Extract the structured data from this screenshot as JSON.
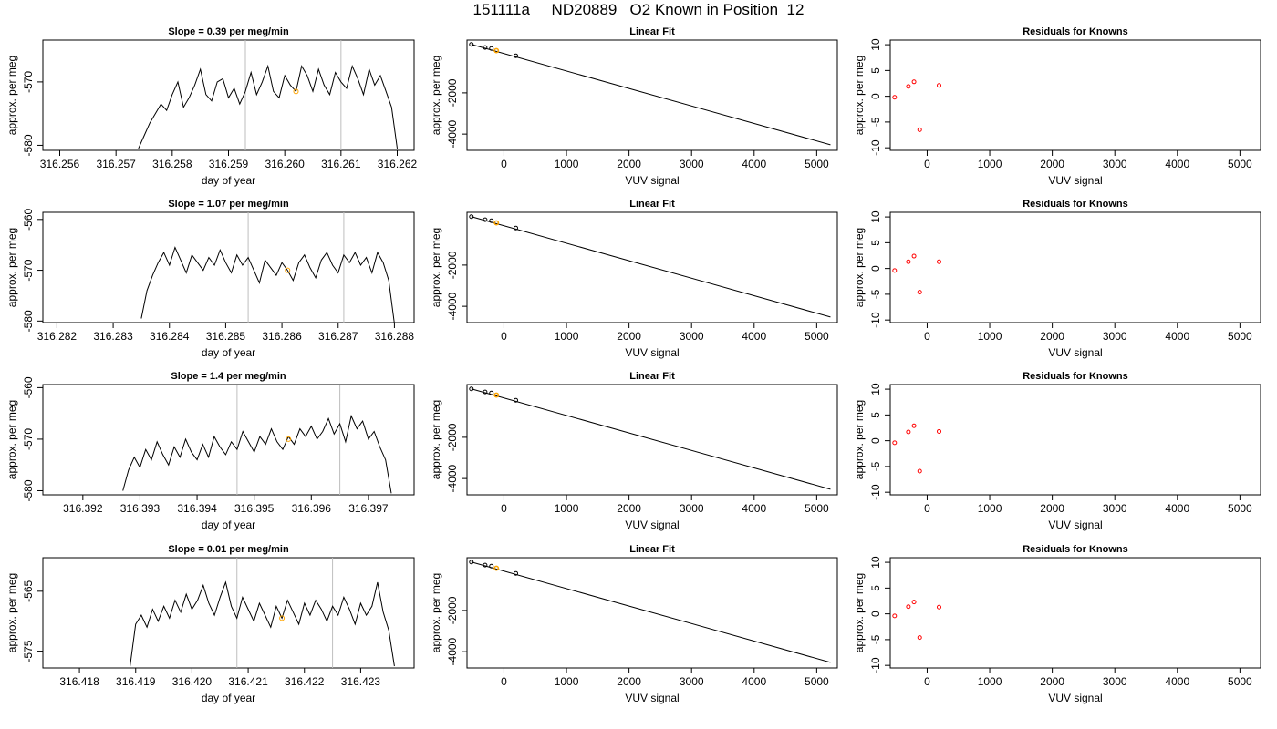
{
  "page": {
    "title": "151111a     ND20889   O2 Known in Position  12"
  },
  "colors": {
    "line": "#000000",
    "highlight": "#ffa500",
    "residual_points": "#ff0000",
    "guide_lines": "#bebebe"
  },
  "rows": [
    {
      "time": {
        "title": "Slope =  0.39  per meg/min",
        "xlabel": "day of year",
        "ylabel": "approx. per meg",
        "xlim": [
          316.2557,
          316.2623
        ],
        "ylim": [
          -580.8,
          -563.4
        ],
        "xticks": [
          "316.256",
          "316.257",
          "316.258",
          "316.259",
          "316.260",
          "316.261",
          "316.262"
        ],
        "yticks": [
          "-570",
          "-580"
        ]
      },
      "fit": {
        "title": "Linear Fit",
        "xlabel": "VUV signal",
        "ylabel": "approx. per meg",
        "xticks": [
          "0",
          "1000",
          "2000",
          "3000",
          "4000",
          "5000"
        ],
        "yticks": [
          "-2000",
          "-4000"
        ]
      },
      "resid": {
        "title": "Residuals for Knowns",
        "xlabel": "VUV signal",
        "ylabel": "approx. per meg",
        "xticks": [
          "0",
          "1000",
          "2000",
          "3000",
          "4000",
          "5000"
        ],
        "yticks": [
          "10",
          "5",
          "0",
          "-5",
          "-10"
        ]
      }
    },
    {
      "time": {
        "title": "Slope =  1.07  per meg/min",
        "xlabel": "day of year",
        "ylabel": "approx. per meg",
        "xlim": [
          316.28175,
          316.28835
        ],
        "ylim": [
          -580.3,
          -558.6
        ],
        "xticks": [
          "316.282",
          "316.283",
          "316.284",
          "316.285",
          "316.286",
          "316.287",
          "316.288"
        ],
        "yticks": [
          "-560",
          "-570",
          "-580"
        ]
      },
      "fit": {
        "title": "Linear Fit",
        "xlabel": "VUV signal",
        "ylabel": "approx. per meg",
        "xticks": [
          "0",
          "1000",
          "2000",
          "3000",
          "4000",
          "5000"
        ],
        "yticks": [
          "-2000",
          "-4000"
        ]
      },
      "resid": {
        "title": "Residuals for Knowns",
        "xlabel": "VUV signal",
        "ylabel": "approx. per meg",
        "xticks": [
          "0",
          "1000",
          "2000",
          "3000",
          "4000",
          "5000"
        ],
        "yticks": [
          "10",
          "5",
          "0",
          "-5",
          "-10"
        ]
      }
    },
    {
      "time": {
        "title": "Slope =  1.4  per meg/min",
        "xlabel": "day of year",
        "ylabel": "approx. per meg",
        "xlim": [
          316.3913,
          316.3978
        ],
        "ylim": [
          -580.8,
          -559.4
        ],
        "xticks": [
          "316.392",
          "316.393",
          "316.394",
          "316.395",
          "316.396",
          "316.397"
        ],
        "yticks": [
          "-560",
          "-570",
          "-580"
        ]
      },
      "fit": {
        "title": "Linear Fit",
        "xlabel": "VUV signal",
        "ylabel": "approx. per meg",
        "xticks": [
          "0",
          "1000",
          "2000",
          "3000",
          "4000",
          "5000"
        ],
        "yticks": [
          "-2000",
          "-4000"
        ]
      },
      "resid": {
        "title": "Residuals for Knowns",
        "xlabel": "VUV signal",
        "ylabel": "approx. per meg",
        "xticks": [
          "0",
          "1000",
          "2000",
          "3000",
          "4000",
          "5000"
        ],
        "yticks": [
          "10",
          "5",
          "0",
          "-5",
          "-10"
        ]
      }
    },
    {
      "time": {
        "title": "Slope =  0.01  per meg/min",
        "xlabel": "day of year",
        "ylabel": "approx. per meg",
        "xlim": [
          316.41735,
          316.42395
        ],
        "ylim": [
          -577.8,
          -559.4
        ],
        "xticks": [
          "316.418",
          "316.419",
          "316.420",
          "316.421",
          "316.422",
          "316.423"
        ],
        "yticks": [
          "-565",
          "-575"
        ]
      },
      "fit": {
        "title": "Linear Fit",
        "xlabel": "VUV signal",
        "ylabel": "approx. per meg",
        "xticks": [
          "0",
          "1000",
          "2000",
          "3000",
          "4000",
          "5000"
        ],
        "yticks": [
          "-2000",
          "-4000"
        ]
      },
      "resid": {
        "title": "Residuals for Knowns",
        "xlabel": "VUV signal",
        "ylabel": "approx. per meg",
        "xticks": [
          "0",
          "1000",
          "2000",
          "3000",
          "4000",
          "5000"
        ],
        "yticks": [
          "10",
          "5",
          "0",
          "-5",
          "-10"
        ]
      }
    }
  ],
  "chart_data": [
    {
      "type": "line",
      "panel": "time-series-row-1",
      "title": "Slope =  0.39  per meg/min",
      "xlabel": "day of year",
      "ylabel": "approx. per meg",
      "xlim": [
        316.2557,
        316.2623
      ],
      "ylim": [
        -580.8,
        -563.4
      ],
      "vlines": [
        316.2593,
        316.261
      ],
      "highlight_point": {
        "x": 316.2602,
        "y": -571.5
      },
      "series": [
        {
          "x": [
            316.2574,
            316.2575,
            316.2576,
            316.2577,
            316.2578,
            316.2579,
            316.258,
            316.2581,
            316.2582,
            316.2583,
            316.2584,
            316.2585,
            316.2586,
            316.2587,
            316.2588,
            316.2589,
            316.259,
            316.2591,
            316.2592,
            316.2593,
            316.2594,
            316.2595,
            316.2596,
            316.2597,
            316.2598,
            316.2599,
            316.26,
            316.2601,
            316.2602,
            316.2603,
            316.2604,
            316.2605,
            316.2606,
            316.2607,
            316.2608,
            316.2609,
            316.261,
            316.2611,
            316.2612,
            316.2613,
            316.2614,
            316.2615,
            316.2616,
            316.2617,
            316.2618,
            316.2619,
            316.262
          ],
          "values": [
            -580.5,
            -578.5,
            -576.5,
            -575.0,
            -573.5,
            -574.5,
            -572.0,
            -570.0,
            -574.0,
            -572.5,
            -570.5,
            -568.0,
            -572.0,
            -573.0,
            -570.0,
            -569.5,
            -572.5,
            -571.0,
            -573.5,
            -571.5,
            -568.5,
            -572.0,
            -570.0,
            -567.5,
            -571.5,
            -572.5,
            -569.0,
            -570.5,
            -571.5,
            -567.5,
            -569.0,
            -571.5,
            -568.0,
            -570.5,
            -572.0,
            -568.5,
            -570.0,
            -571.0,
            -567.5,
            -569.5,
            -572.0,
            -568.0,
            -570.5,
            -569.0,
            -571.5,
            -574.0,
            -580.5
          ]
        }
      ]
    },
    {
      "type": "line",
      "panel": "time-series-row-2",
      "title": "Slope =  1.07  per meg/min",
      "xlabel": "day of year",
      "ylabel": "approx. per meg",
      "xlim": [
        316.28175,
        316.28835
      ],
      "ylim": [
        -580.3,
        -558.6
      ],
      "vlines": [
        316.2854,
        316.2871
      ],
      "highlight_point": {
        "x": 316.2861,
        "y": -570.0
      },
      "series": [
        {
          "x": [
            316.2835,
            316.2836,
            316.2837,
            316.2838,
            316.2839,
            316.284,
            316.2841,
            316.2842,
            316.2843,
            316.2844,
            316.2845,
            316.2846,
            316.2847,
            316.2848,
            316.2849,
            316.285,
            316.2851,
            316.2852,
            316.2853,
            316.2854,
            316.2855,
            316.2856,
            316.2857,
            316.2858,
            316.2859,
            316.286,
            316.2861,
            316.2862,
            316.2863,
            316.2864,
            316.2865,
            316.2866,
            316.2867,
            316.2868,
            316.2869,
            316.287,
            316.2871,
            316.2872,
            316.2873,
            316.2874,
            316.2875,
            316.2876,
            316.2877,
            316.2878,
            316.2879,
            316.288
          ],
          "values": [
            -579.5,
            -574.0,
            -571.0,
            -568.5,
            -566.5,
            -569.0,
            -565.5,
            -568.0,
            -570.5,
            -567.0,
            -568.5,
            -570.0,
            -567.5,
            -569.0,
            -566.0,
            -568.5,
            -570.5,
            -567.0,
            -569.0,
            -567.5,
            -570.0,
            -572.5,
            -568.0,
            -569.5,
            -571.0,
            -568.5,
            -570.0,
            -572.0,
            -568.5,
            -567.0,
            -569.5,
            -571.5,
            -568.0,
            -566.5,
            -569.0,
            -570.5,
            -567.0,
            -568.5,
            -566.5,
            -569.0,
            -567.5,
            -570.5,
            -566.5,
            -568.5,
            -572.0,
            -580.5
          ]
        }
      ]
    },
    {
      "type": "line",
      "panel": "time-series-row-3",
      "title": "Slope =  1.4  per meg/min",
      "xlabel": "day of year",
      "ylabel": "approx. per meg",
      "xlim": [
        316.3913,
        316.3978
      ],
      "ylim": [
        -580.8,
        -559.4
      ],
      "vlines": [
        316.3947,
        316.3965
      ],
      "highlight_point": {
        "x": 316.3956,
        "y": -570.0
      },
      "series": [
        {
          "x": [
            316.3927,
            316.3928,
            316.3929,
            316.393,
            316.3931,
            316.3932,
            316.3933,
            316.3934,
            316.3935,
            316.3936,
            316.3937,
            316.3938,
            316.3939,
            316.394,
            316.3941,
            316.3942,
            316.3943,
            316.3944,
            316.3945,
            316.3946,
            316.3947,
            316.3948,
            316.3949,
            316.395,
            316.3951,
            316.3952,
            316.3953,
            316.3954,
            316.3955,
            316.3956,
            316.3957,
            316.3958,
            316.3959,
            316.396,
            316.3961,
            316.3962,
            316.3963,
            316.3964,
            316.3965,
            316.3966,
            316.3967,
            316.3968,
            316.3969,
            316.397,
            316.3971,
            316.3972,
            316.3973,
            316.3974
          ],
          "values": [
            -580.0,
            -576.0,
            -573.5,
            -575.5,
            -572.0,
            -574.0,
            -570.5,
            -573.0,
            -575.0,
            -571.5,
            -573.5,
            -570.0,
            -572.5,
            -574.0,
            -571.0,
            -573.5,
            -569.5,
            -571.5,
            -573.0,
            -570.5,
            -572.0,
            -568.5,
            -570.5,
            -572.5,
            -569.5,
            -571.0,
            -568.0,
            -570.5,
            -572.0,
            -569.5,
            -571.0,
            -568.0,
            -569.5,
            -567.5,
            -570.0,
            -568.5,
            -566.0,
            -569.0,
            -567.0,
            -570.5,
            -565.5,
            -568.0,
            -566.5,
            -570.0,
            -568.5,
            -571.5,
            -574.0,
            -580.5
          ]
        }
      ]
    },
    {
      "type": "line",
      "panel": "time-series-row-4",
      "title": "Slope =  0.01  per meg/min",
      "xlabel": "day of year",
      "ylabel": "approx. per meg",
      "xlim": [
        316.41735,
        316.42395
      ],
      "ylim": [
        -577.8,
        -559.4
      ],
      "vlines": [
        316.4208,
        316.4225
      ],
      "highlight_point": {
        "x": 316.4216,
        "y": -569.5
      },
      "series": [
        {
          "x": [
            316.4189,
            316.419,
            316.4191,
            316.4192,
            316.4193,
            316.4194,
            316.4195,
            316.4196,
            316.4197,
            316.4198,
            316.4199,
            316.42,
            316.4201,
            316.4202,
            316.4203,
            316.4204,
            316.4205,
            316.4206,
            316.4207,
            316.4208,
            316.4209,
            316.421,
            316.4211,
            316.4212,
            316.4213,
            316.4214,
            316.4215,
            316.4216,
            316.4217,
            316.4218,
            316.4219,
            316.422,
            316.4221,
            316.4222,
            316.4223,
            316.4224,
            316.4225,
            316.4226,
            316.4227,
            316.4228,
            316.4229,
            316.423,
            316.4231,
            316.4232,
            316.4233,
            316.4234,
            316.4235,
            316.4236
          ],
          "values": [
            -577.5,
            -570.5,
            -569.0,
            -571.0,
            -568.0,
            -570.0,
            -567.5,
            -569.5,
            -566.5,
            -568.5,
            -565.5,
            -568.0,
            -566.5,
            -564.0,
            -567.0,
            -569.0,
            -566.0,
            -563.5,
            -567.5,
            -569.5,
            -566.0,
            -568.0,
            -570.0,
            -567.0,
            -569.0,
            -571.0,
            -567.5,
            -569.5,
            -566.5,
            -568.5,
            -570.5,
            -567.0,
            -569.0,
            -566.5,
            -568.0,
            -570.0,
            -567.5,
            -569.0,
            -566.0,
            -568.0,
            -570.5,
            -567.0,
            -569.0,
            -567.5,
            -563.5,
            -568.5,
            -571.5,
            -577.5
          ]
        }
      ]
    },
    {
      "type": "scatter",
      "panel": "linear-fit (identical in all four rows)",
      "title": "Linear Fit",
      "xlabel": "VUV signal",
      "ylabel": "approx. per meg",
      "xlim": [
        -590,
        5330
      ],
      "ylim": [
        -4790,
        560
      ],
      "points": {
        "x": [
          -520,
          -300,
          -200,
          -120,
          190
        ],
        "y": [
          350,
          200,
          150,
          50,
          -200
        ]
      },
      "highlight_point": {
        "x": -120,
        "y": 50
      },
      "fit_line": {
        "x": [
          -520,
          5220
        ],
        "y": [
          350,
          -4520
        ]
      }
    },
    {
      "type": "scatter",
      "panel": "residuals-row-1",
      "title": "Residuals for Knowns",
      "xlabel": "VUV signal",
      "ylabel": "approx. per meg",
      "xlim": [
        -590,
        5330
      ],
      "ylim": [
        -10.5,
        10.9
      ],
      "x": [
        -520,
        -300,
        -210,
        -120,
        190
      ],
      "y": [
        -0.2,
        1.9,
        2.8,
        -6.5,
        2.1
      ]
    },
    {
      "type": "scatter",
      "panel": "residuals-row-2",
      "title": "Residuals for Knowns",
      "xlabel": "VUV signal",
      "ylabel": "approx. per meg",
      "xlim": [
        -590,
        5330
      ],
      "ylim": [
        -10.5,
        10.9
      ],
      "x": [
        -520,
        -300,
        -210,
        -120,
        190
      ],
      "y": [
        -0.4,
        1.3,
        2.4,
        -4.6,
        1.3
      ]
    },
    {
      "type": "scatter",
      "panel": "residuals-row-3",
      "title": "Residuals for Knowns",
      "xlabel": "VUV signal",
      "ylabel": "approx. per meg",
      "xlim": [
        -590,
        5330
      ],
      "ylim": [
        -10.5,
        10.9
      ],
      "x": [
        -520,
        -300,
        -210,
        -120,
        190
      ],
      "y": [
        -0.4,
        1.7,
        2.9,
        -5.9,
        1.8
      ]
    },
    {
      "type": "scatter",
      "panel": "residuals-row-4",
      "title": "Residuals for Knowns",
      "xlabel": "VUV signal",
      "ylabel": "approx. per meg",
      "xlim": [
        -590,
        5330
      ],
      "ylim": [
        -10.5,
        10.9
      ],
      "x": [
        -520,
        -300,
        -210,
        -120,
        190
      ],
      "y": [
        -0.4,
        1.4,
        2.3,
        -4.6,
        1.3
      ]
    }
  ]
}
